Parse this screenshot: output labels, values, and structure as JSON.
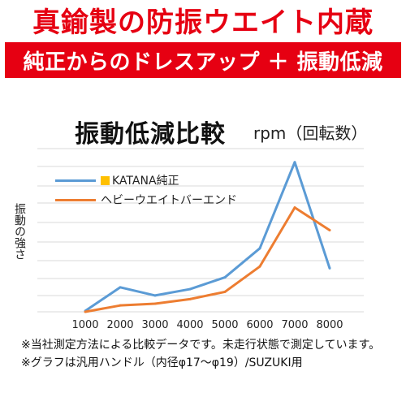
{
  "header": {
    "headline": "真鍮製の防振ウエイト内蔵",
    "banner": "純正からのドレスアップ ＋ 振動低減"
  },
  "chart_data": {
    "type": "line",
    "title": "振動低減比較",
    "unit_label": "rpm（回転数）",
    "xlabel": "",
    "ylabel": "振動の強さ",
    "categories": [
      "1000",
      "2000",
      "3000",
      "4000",
      "5000",
      "6000",
      "7000",
      "8000"
    ],
    "series": [
      {
        "name": "KATANA純正",
        "color": "#5b9bd5",
        "values": [
          1,
          27,
          18,
          25,
          38,
          70,
          165,
          48
        ]
      },
      {
        "name": "ヘビーウエイトバーエンド",
        "color": "#ed7d31",
        "values": [
          0,
          7,
          9,
          14,
          22,
          50,
          115,
          90
        ]
      }
    ],
    "grid": true,
    "legend_position": "top-left",
    "legend_marker_color": "#ffc000"
  },
  "notes": [
    "※当社測定方法による比較データです。未走行状態で測定しています。",
    "※グラフは汎用ハンドル（内径φ17〜φ19）/SUZUKI用"
  ]
}
